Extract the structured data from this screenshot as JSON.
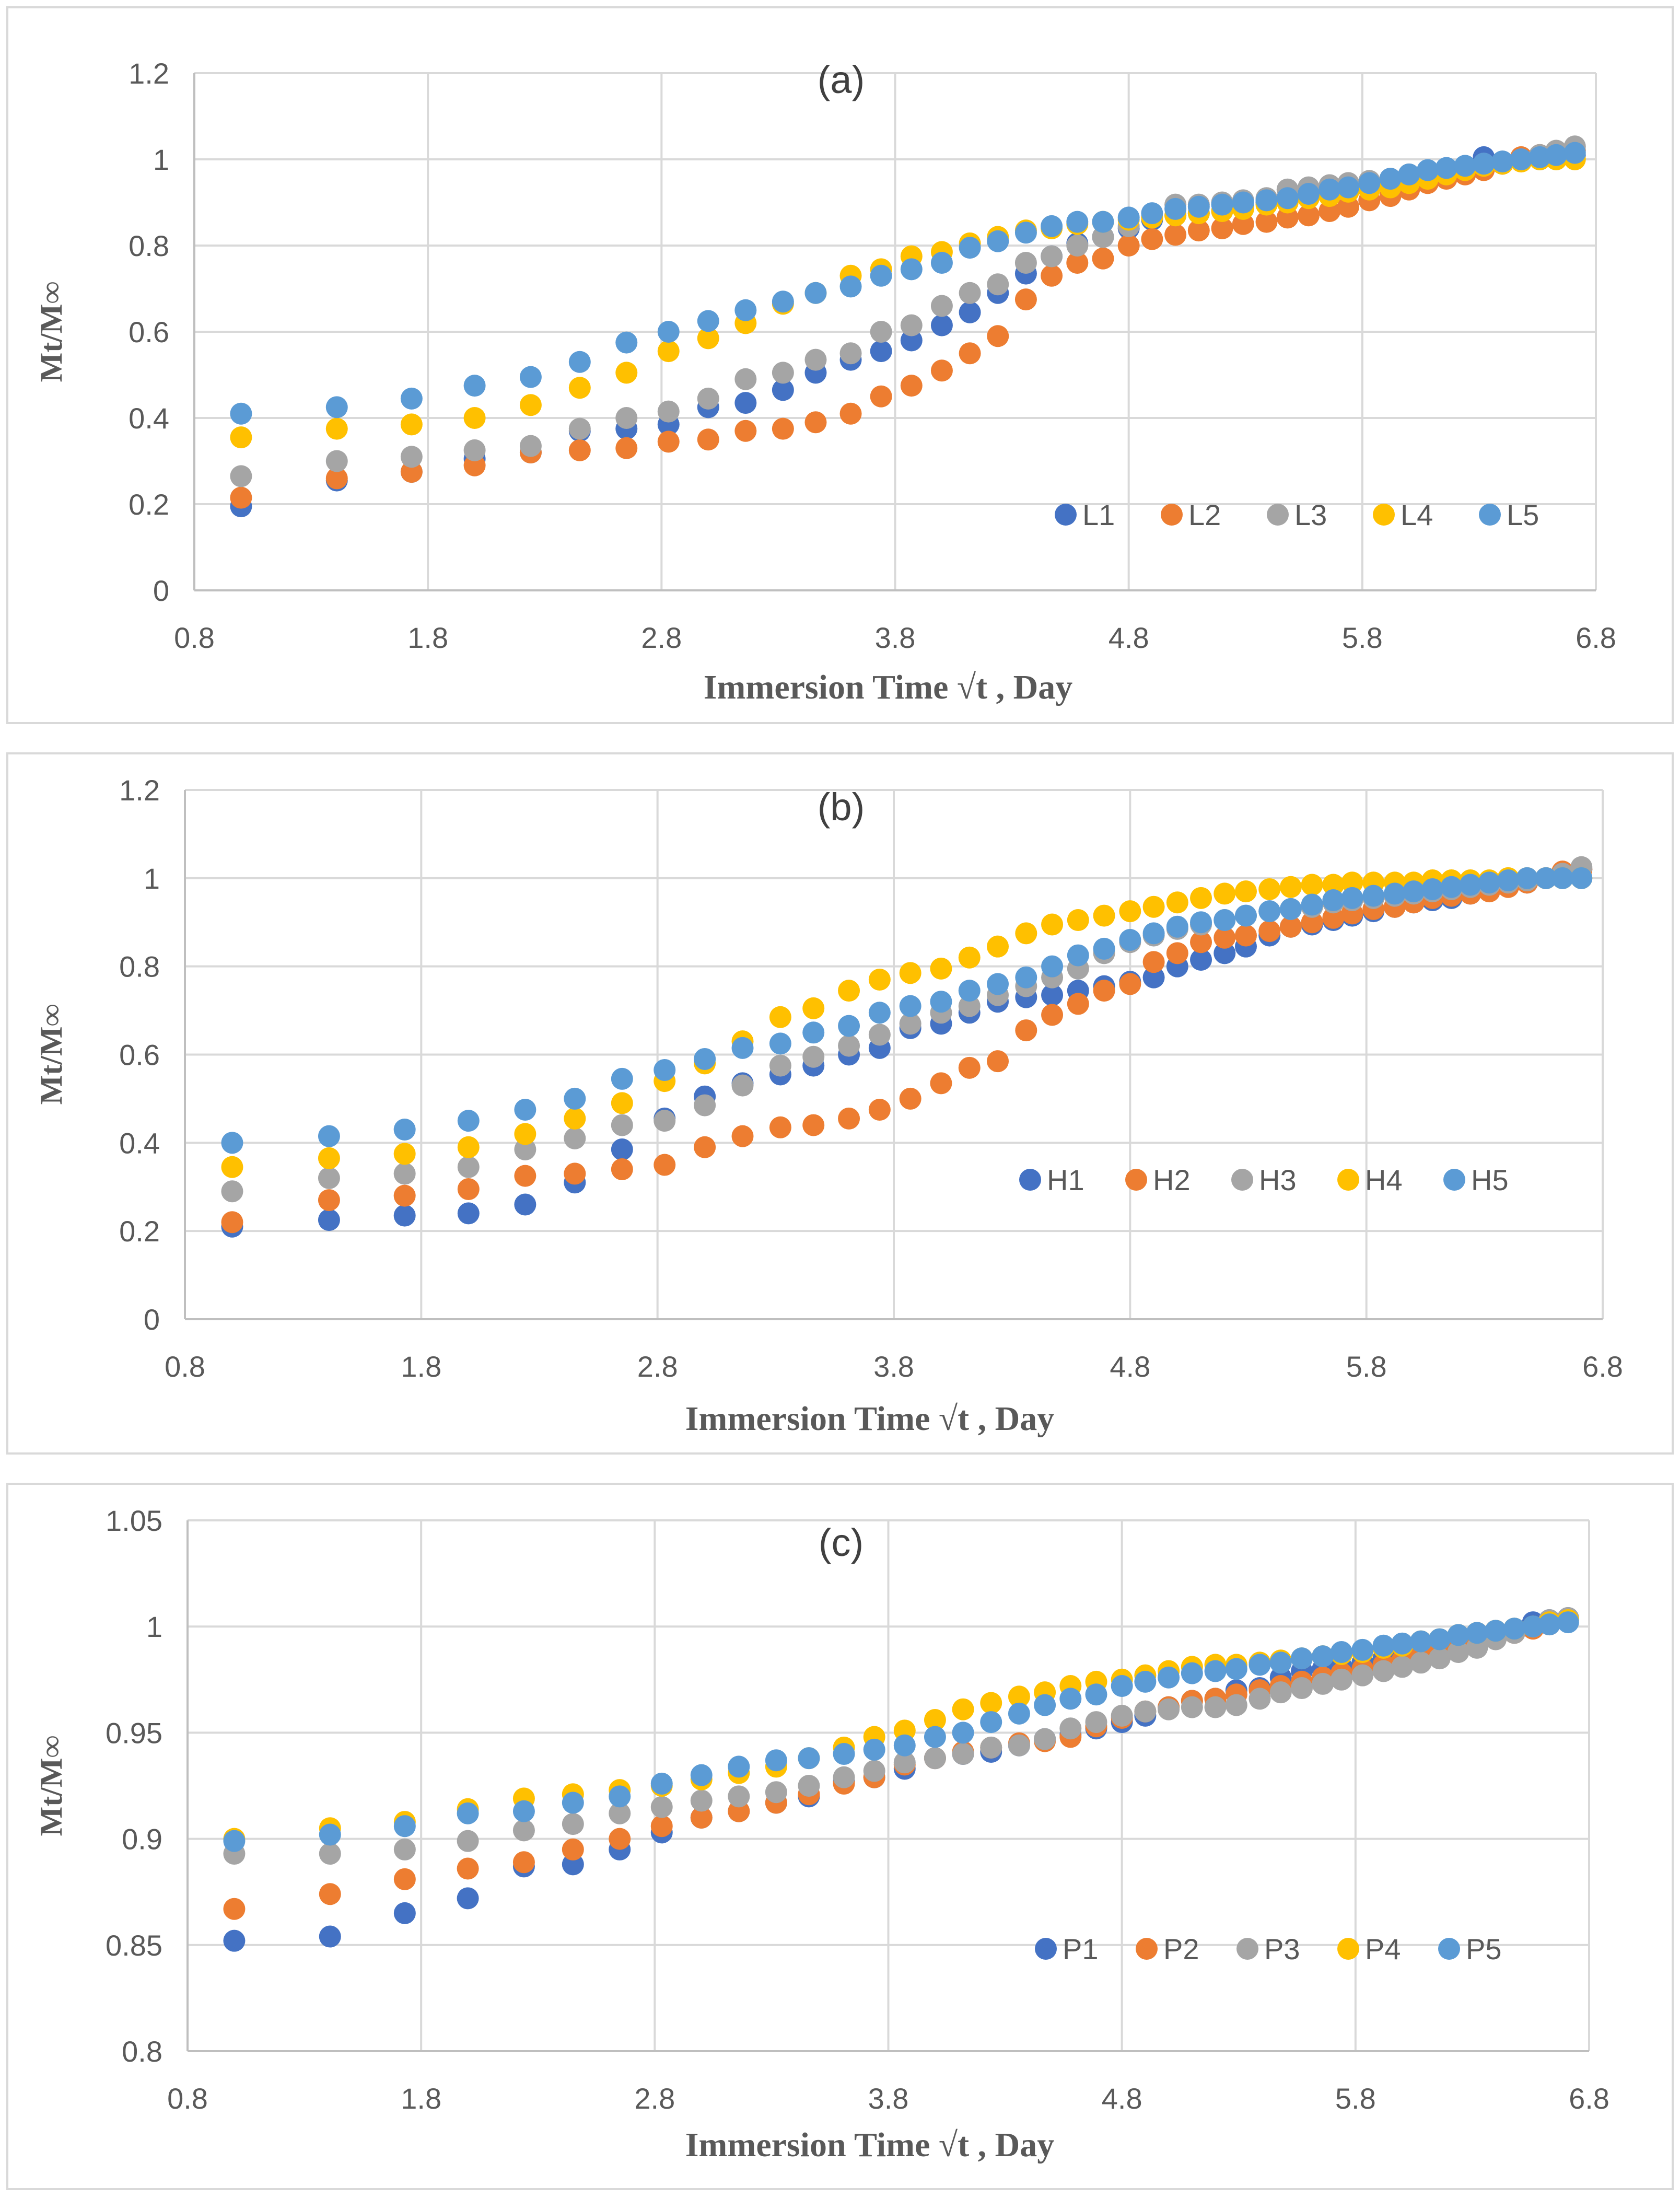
{
  "chart_data": [
    {
      "type": "scatter",
      "title": "(a)",
      "xlabel": "Immersion Time √t , Day",
      "ylabel": "Mt/M∞",
      "xlim": [
        0.8,
        6.8
      ],
      "ylim": [
        0,
        1.2
      ],
      "xticks": [
        0.8,
        1.8,
        2.8,
        3.8,
        4.8,
        5.8,
        6.8
      ],
      "xtick_labels": [
        "0.8",
        "1.8",
        "2.8",
        "3.8",
        "4.8",
        "5.8",
        "6.8"
      ],
      "yticks": [
        0,
        0.2,
        0.4,
        0.6,
        0.8,
        1,
        1.2
      ],
      "ytick_labels": [
        "0",
        "0.2",
        "0.4",
        "0.6",
        "0.8",
        "1",
        "1.2"
      ],
      "grid": true,
      "legend_position": "bottom-right",
      "x": [
        1.0,
        1.41,
        1.73,
        2.0,
        2.24,
        2.45,
        2.65,
        2.83,
        3.0,
        3.16,
        3.32,
        3.46,
        3.61,
        3.74,
        3.87,
        4.0,
        4.12,
        4.24,
        4.36,
        4.47,
        4.58,
        4.69,
        4.8,
        4.9,
        5.0,
        5.1,
        5.2,
        5.29,
        5.39,
        5.48,
        5.57,
        5.66,
        5.74,
        5.83,
        5.92,
        6.0,
        6.08,
        6.16,
        6.24,
        6.32,
        6.4,
        6.48,
        6.56,
        6.63,
        6.71
      ],
      "series": [
        {
          "name": "L1",
          "color": "#4472C4",
          "values": [
            0.195,
            0.255,
            0.275,
            0.305,
            0.32,
            0.37,
            0.375,
            0.385,
            0.425,
            0.435,
            0.465,
            0.505,
            0.535,
            0.555,
            0.58,
            0.615,
            0.645,
            0.69,
            0.735,
            0.775,
            0.805,
            0.82,
            0.84,
            0.86,
            0.87,
            0.875,
            0.88,
            0.89,
            0.9,
            0.91,
            0.92,
            0.925,
            0.935,
            0.94,
            0.945,
            0.95,
            0.96,
            0.97,
            0.98,
            1.005,
            0.99,
            1.0,
            1.0,
            1.005,
            1.01
          ]
        },
        {
          "name": "L2",
          "color": "#ED7D31",
          "values": [
            0.215,
            0.26,
            0.275,
            0.29,
            0.32,
            0.325,
            0.33,
            0.345,
            0.35,
            0.37,
            0.375,
            0.39,
            0.41,
            0.45,
            0.475,
            0.51,
            0.55,
            0.59,
            0.675,
            0.73,
            0.76,
            0.77,
            0.8,
            0.815,
            0.825,
            0.835,
            0.84,
            0.85,
            0.855,
            0.865,
            0.87,
            0.88,
            0.89,
            0.905,
            0.915,
            0.93,
            0.945,
            0.955,
            0.965,
            0.975,
            0.99,
            1.005,
            1.01,
            1.015,
            1.02
          ]
        },
        {
          "name": "L3",
          "color": "#A5A5A5",
          "values": [
            0.265,
            0.3,
            0.31,
            0.325,
            0.335,
            0.375,
            0.4,
            0.415,
            0.445,
            0.49,
            0.505,
            0.535,
            0.55,
            0.6,
            0.615,
            0.66,
            0.69,
            0.71,
            0.76,
            0.775,
            0.8,
            0.82,
            0.845,
            0.865,
            0.895,
            0.895,
            0.9,
            0.905,
            0.91,
            0.93,
            0.935,
            0.94,
            0.945,
            0.95,
            0.955,
            0.965,
            0.97,
            0.975,
            0.98,
            0.99,
            0.995,
            1.0,
            1.01,
            1.02,
            1.03
          ]
        },
        {
          "name": "L4",
          "color": "#FFC000",
          "values": [
            0.355,
            0.375,
            0.385,
            0.4,
            0.43,
            0.47,
            0.505,
            0.555,
            0.585,
            0.62,
            0.665,
            0.69,
            0.73,
            0.745,
            0.775,
            0.785,
            0.805,
            0.82,
            0.835,
            0.84,
            0.85,
            0.855,
            0.86,
            0.865,
            0.87,
            0.875,
            0.88,
            0.885,
            0.895,
            0.9,
            0.91,
            0.915,
            0.925,
            0.93,
            0.935,
            0.945,
            0.955,
            0.965,
            0.975,
            0.985,
            0.99,
            0.995,
            1.0,
            1.0,
            1.0
          ]
        },
        {
          "name": "L5",
          "color": "#5B9BD5",
          "values": [
            0.41,
            0.425,
            0.445,
            0.475,
            0.495,
            0.53,
            0.575,
            0.6,
            0.625,
            0.65,
            0.67,
            0.69,
            0.705,
            0.73,
            0.745,
            0.76,
            0.795,
            0.81,
            0.83,
            0.845,
            0.855,
            0.855,
            0.865,
            0.875,
            0.885,
            0.89,
            0.895,
            0.9,
            0.905,
            0.91,
            0.92,
            0.93,
            0.935,
            0.945,
            0.955,
            0.965,
            0.975,
            0.98,
            0.985,
            0.99,
            0.995,
            1.0,
            1.005,
            1.01,
            1.015
          ]
        }
      ]
    },
    {
      "type": "scatter",
      "title": "(b)",
      "xlabel": "Immersion Time √t , Day",
      "ylabel": "Mt/M∞",
      "xlim": [
        0.8,
        6.8
      ],
      "ylim": [
        0,
        1.2
      ],
      "xticks": [
        0.8,
        1.8,
        2.8,
        3.8,
        4.8,
        5.8,
        6.8
      ],
      "xtick_labels": [
        "0.8",
        "1.8",
        "2.8",
        "3.8",
        "4.8",
        "5.8",
        "6.8"
      ],
      "yticks": [
        0,
        0.2,
        0.4,
        0.6,
        0.8,
        1,
        1.2
      ],
      "ytick_labels": [
        "0",
        "0.2",
        "0.4",
        "0.6",
        "0.8",
        "1",
        "1.2"
      ],
      "grid": true,
      "legend_position": "bottom-right",
      "x": [
        1.0,
        1.41,
        1.73,
        2.0,
        2.24,
        2.45,
        2.65,
        2.83,
        3.0,
        3.16,
        3.32,
        3.46,
        3.61,
        3.74,
        3.87,
        4.0,
        4.12,
        4.24,
        4.36,
        4.47,
        4.58,
        4.69,
        4.8,
        4.9,
        5.0,
        5.1,
        5.2,
        5.29,
        5.39,
        5.48,
        5.57,
        5.66,
        5.74,
        5.83,
        5.92,
        6.0,
        6.08,
        6.16,
        6.24,
        6.32,
        6.4,
        6.48,
        6.56,
        6.63,
        6.71
      ],
      "series": [
        {
          "name": "H1",
          "color": "#4472C4",
          "values": [
            0.21,
            0.225,
            0.235,
            0.24,
            0.26,
            0.31,
            0.385,
            0.455,
            0.505,
            0.535,
            0.555,
            0.575,
            0.6,
            0.615,
            0.66,
            0.67,
            0.695,
            0.72,
            0.73,
            0.735,
            0.745,
            0.755,
            0.765,
            0.775,
            0.8,
            0.815,
            0.83,
            0.845,
            0.87,
            0.89,
            0.895,
            0.905,
            0.915,
            0.925,
            0.935,
            0.945,
            0.95,
            0.955,
            0.965,
            0.975,
            0.985,
            0.99,
            1.0,
            1.01,
            1.02
          ]
        },
        {
          "name": "H2",
          "color": "#ED7D31",
          "values": [
            0.22,
            0.27,
            0.28,
            0.295,
            0.325,
            0.33,
            0.34,
            0.35,
            0.39,
            0.415,
            0.435,
            0.44,
            0.455,
            0.475,
            0.5,
            0.535,
            0.57,
            0.585,
            0.655,
            0.69,
            0.715,
            0.745,
            0.76,
            0.81,
            0.83,
            0.855,
            0.865,
            0.87,
            0.88,
            0.89,
            0.9,
            0.91,
            0.92,
            0.93,
            0.935,
            0.945,
            0.955,
            0.96,
            0.965,
            0.97,
            0.98,
            0.99,
            1.0,
            1.015,
            1.02
          ]
        },
        {
          "name": "H3",
          "color": "#A5A5A5",
          "values": [
            0.29,
            0.32,
            0.33,
            0.345,
            0.385,
            0.41,
            0.44,
            0.45,
            0.485,
            0.53,
            0.575,
            0.595,
            0.62,
            0.645,
            0.67,
            0.695,
            0.71,
            0.735,
            0.755,
            0.775,
            0.795,
            0.83,
            0.855,
            0.87,
            0.885,
            0.895,
            0.905,
            0.915,
            0.925,
            0.93,
            0.935,
            0.945,
            0.95,
            0.955,
            0.96,
            0.965,
            0.97,
            0.975,
            0.98,
            0.985,
            0.99,
            0.995,
            1.0,
            1.01,
            1.025
          ]
        },
        {
          "name": "H4",
          "color": "#FFC000",
          "values": [
            0.345,
            0.365,
            0.375,
            0.39,
            0.42,
            0.455,
            0.49,
            0.54,
            0.58,
            0.63,
            0.685,
            0.705,
            0.745,
            0.77,
            0.785,
            0.795,
            0.82,
            0.845,
            0.875,
            0.895,
            0.905,
            0.915,
            0.925,
            0.935,
            0.945,
            0.955,
            0.965,
            0.97,
            0.975,
            0.98,
            0.985,
            0.985,
            0.99,
            0.99,
            0.99,
            0.99,
            0.995,
            0.995,
            0.995,
            0.995,
            1.0,
            1.0,
            1.0,
            1.0,
            1.0
          ]
        },
        {
          "name": "H5",
          "color": "#5B9BD5",
          "values": [
            0.4,
            0.415,
            0.43,
            0.45,
            0.475,
            0.5,
            0.545,
            0.565,
            0.59,
            0.615,
            0.625,
            0.65,
            0.665,
            0.695,
            0.71,
            0.72,
            0.745,
            0.76,
            0.775,
            0.8,
            0.825,
            0.84,
            0.86,
            0.875,
            0.89,
            0.9,
            0.905,
            0.915,
            0.925,
            0.93,
            0.94,
            0.95,
            0.955,
            0.96,
            0.965,
            0.97,
            0.975,
            0.98,
            0.985,
            0.99,
            0.995,
            1.0,
            1.0,
            1.0,
            1.0
          ]
        }
      ]
    },
    {
      "type": "scatter",
      "title": "(c)",
      "xlabel": "Immersion Time √t , Day",
      "ylabel": "Mt/M∞",
      "xlim": [
        0.8,
        6.8
      ],
      "ylim": [
        0.8,
        1.05
      ],
      "xticks": [
        0.8,
        1.8,
        2.8,
        3.8,
        4.8,
        5.8,
        6.8
      ],
      "xtick_labels": [
        "0.8",
        "1.8",
        "2.8",
        "3.8",
        "4.8",
        "5.8",
        "6.8"
      ],
      "yticks": [
        0.8,
        0.85,
        0.9,
        0.95,
        1,
        1.05
      ],
      "ytick_labels": [
        "0.8",
        "0.85",
        "0.9",
        "0.95",
        "1",
        "1.05"
      ],
      "grid": true,
      "legend_position": "bottom-right",
      "x": [
        1.0,
        1.41,
        1.73,
        2.0,
        2.24,
        2.45,
        2.65,
        2.83,
        3.0,
        3.16,
        3.32,
        3.46,
        3.61,
        3.74,
        3.87,
        4.0,
        4.12,
        4.24,
        4.36,
        4.47,
        4.58,
        4.69,
        4.8,
        4.9,
        5.0,
        5.1,
        5.2,
        5.29,
        5.39,
        5.48,
        5.57,
        5.66,
        5.74,
        5.83,
        5.92,
        6.0,
        6.08,
        6.16,
        6.24,
        6.32,
        6.4,
        6.48,
        6.56,
        6.63,
        6.71
      ],
      "series": [
        {
          "name": "P1",
          "color": "#4472C4",
          "values": [
            0.852,
            0.854,
            0.865,
            0.872,
            0.887,
            0.888,
            0.895,
            0.903,
            0.91,
            0.913,
            0.917,
            0.92,
            0.927,
            0.929,
            0.933,
            0.938,
            0.94,
            0.941,
            0.944,
            0.947,
            0.949,
            0.952,
            0.955,
            0.958,
            0.962,
            0.965,
            0.966,
            0.97,
            0.971,
            0.976,
            0.979,
            0.98,
            0.981,
            0.983,
            0.985,
            0.987,
            0.989,
            0.991,
            0.993,
            0.995,
            0.997,
            0.999,
            1.002,
            1.003,
            1.004
          ]
        },
        {
          "name": "P2",
          "color": "#ED7D31",
          "values": [
            0.867,
            0.874,
            0.881,
            0.886,
            0.889,
            0.895,
            0.9,
            0.906,
            0.91,
            0.913,
            0.917,
            0.921,
            0.926,
            0.929,
            0.935,
            0.938,
            0.941,
            0.943,
            0.945,
            0.946,
            0.948,
            0.953,
            0.957,
            0.96,
            0.962,
            0.965,
            0.966,
            0.968,
            0.97,
            0.972,
            0.974,
            0.976,
            0.978,
            0.98,
            0.982,
            0.984,
            0.986,
            0.989,
            0.991,
            0.993,
            0.995,
            0.997,
            0.999,
            1.001,
            1.003
          ]
        },
        {
          "name": "P3",
          "color": "#A5A5A5",
          "values": [
            0.893,
            0.893,
            0.895,
            0.899,
            0.904,
            0.907,
            0.912,
            0.915,
            0.918,
            0.92,
            0.922,
            0.925,
            0.929,
            0.932,
            0.936,
            0.938,
            0.94,
            0.943,
            0.944,
            0.947,
            0.952,
            0.955,
            0.958,
            0.96,
            0.961,
            0.962,
            0.962,
            0.963,
            0.966,
            0.969,
            0.971,
            0.973,
            0.975,
            0.977,
            0.979,
            0.981,
            0.983,
            0.985,
            0.988,
            0.99,
            0.994,
            0.997,
            1.0,
            1.003,
            1.004
          ]
        },
        {
          "name": "P4",
          "color": "#FFC000",
          "values": [
            0.9,
            0.905,
            0.908,
            0.914,
            0.919,
            0.921,
            0.923,
            0.925,
            0.928,
            0.931,
            0.934,
            0.938,
            0.943,
            0.948,
            0.951,
            0.956,
            0.961,
            0.964,
            0.967,
            0.969,
            0.972,
            0.974,
            0.975,
            0.977,
            0.979,
            0.981,
            0.982,
            0.982,
            0.983,
            0.984,
            0.985,
            0.986,
            0.987,
            0.988,
            0.99,
            0.991,
            0.993,
            0.994,
            0.996,
            0.997,
            0.998,
            0.999,
            1.0,
            1.002,
            1.003
          ]
        },
        {
          "name": "P5",
          "color": "#5B9BD5",
          "values": [
            0.899,
            0.902,
            0.906,
            0.912,
            0.913,
            0.917,
            0.92,
            0.926,
            0.93,
            0.934,
            0.937,
            0.938,
            0.94,
            0.942,
            0.944,
            0.948,
            0.95,
            0.955,
            0.959,
            0.963,
            0.966,
            0.968,
            0.972,
            0.974,
            0.976,
            0.978,
            0.979,
            0.98,
            0.982,
            0.983,
            0.985,
            0.986,
            0.988,
            0.989,
            0.991,
            0.992,
            0.993,
            0.994,
            0.996,
            0.997,
            0.998,
            0.999,
            1.0,
            1.001,
            1.002
          ]
        }
      ]
    }
  ]
}
